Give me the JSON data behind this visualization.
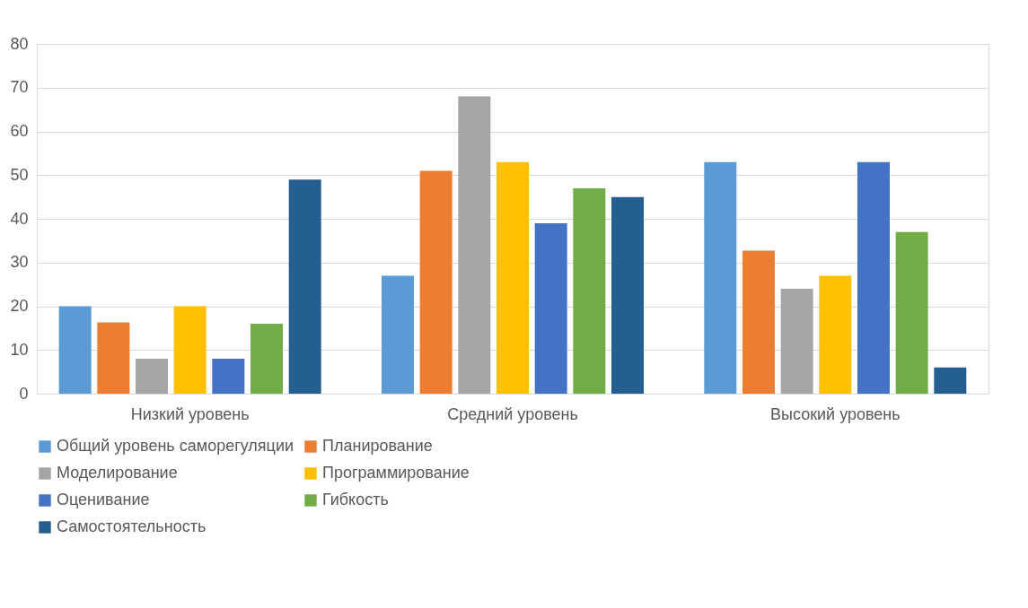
{
  "chart_data": {
    "type": "bar",
    "categories": [
      "Низкий уровень",
      "Средний уровень",
      "Высокий уровень"
    ],
    "series": [
      {
        "name": "Общий уровень саморегуляции",
        "color": "#5b9bd5",
        "values": [
          20,
          27,
          53
        ]
      },
      {
        "name": "Планирование",
        "color": "#ed7d31",
        "values": [
          16.3,
          51,
          32.7
        ]
      },
      {
        "name": "Моделирование",
        "color": "#a5a5a5",
        "values": [
          8,
          68,
          24
        ]
      },
      {
        "name": "Программирование",
        "color": "#ffc000",
        "values": [
          20,
          53,
          27
        ]
      },
      {
        "name": "Оценивание",
        "color": "#4472c4",
        "values": [
          8,
          39,
          53
        ]
      },
      {
        "name": "Гибкость",
        "color": "#70ad47",
        "values": [
          16,
          47,
          37
        ]
      },
      {
        "name": "Самостоятельность",
        "color": "#255e91",
        "values": [
          49,
          45,
          6
        ]
      }
    ],
    "ylim": [
      0,
      80
    ],
    "yticks": [
      0,
      10,
      20,
      30,
      40,
      50,
      60,
      70,
      80
    ],
    "grid": "y",
    "legend": "bottom"
  }
}
